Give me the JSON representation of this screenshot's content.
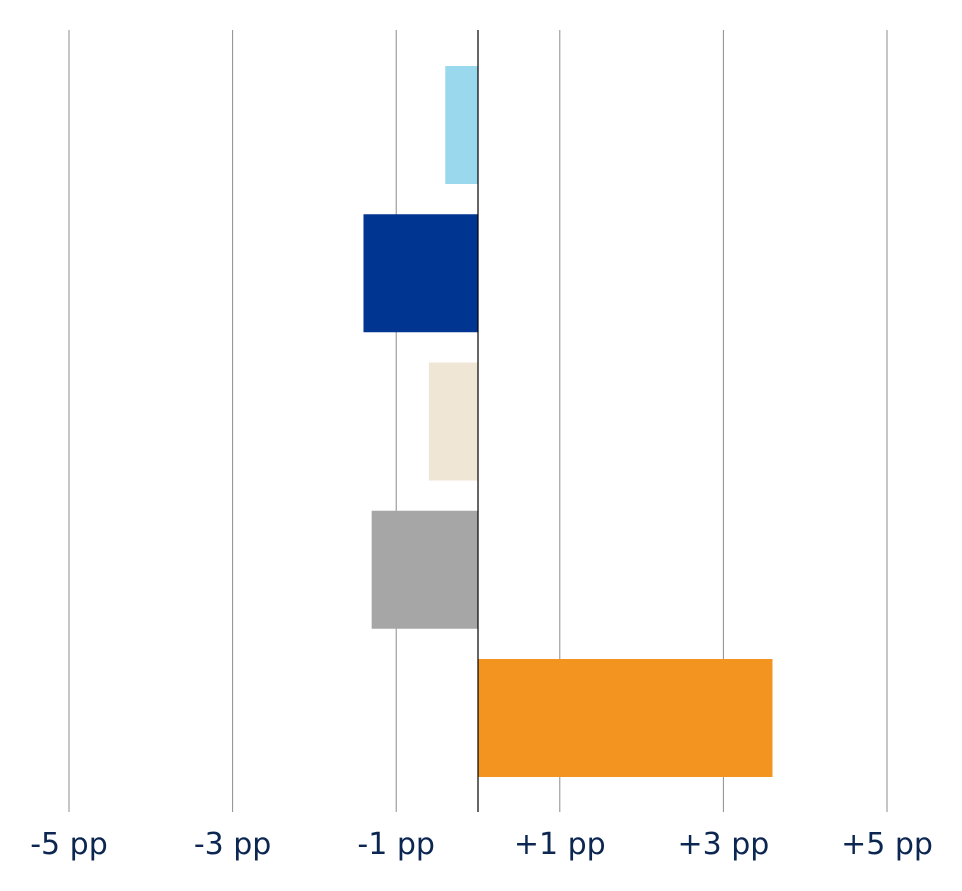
{
  "chart_data": {
    "type": "bar",
    "orientation": "horizontal",
    "title": "",
    "xlabel": "",
    "ylabel": "",
    "xlim": [
      -5,
      5
    ],
    "grid": true,
    "x_ticks": [
      -5,
      -3,
      -1,
      1,
      3,
      5
    ],
    "x_tick_labels": [
      "-5 pp",
      "-3 pp",
      "-1 pp",
      "+1 pp",
      "+3 pp",
      "+5 pp"
    ],
    "values": [
      -0.4,
      -1.4,
      -0.6,
      -1.3,
      3.6
    ],
    "colors": [
      "#9ad8ee",
      "#003591",
      "#f0e6d6",
      "#a6a6a6",
      "#f39320"
    ]
  }
}
